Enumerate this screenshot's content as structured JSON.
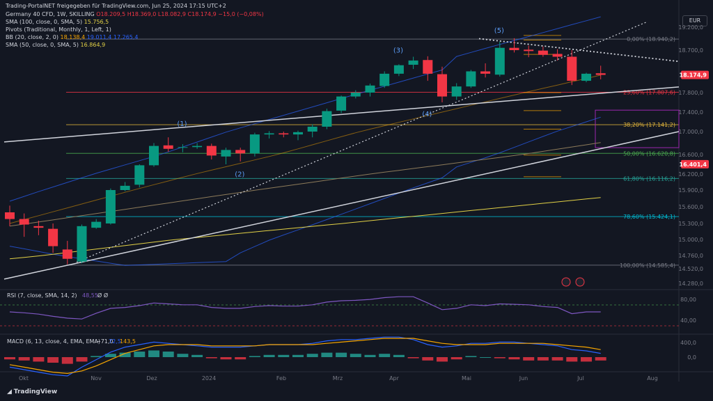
{
  "header": {
    "published": "Trading-PortalNET freigegeben für TradingView.com, Jun 25, 2024 17:15 UTC+2",
    "symbol": "Germany 40 CFD, 1W, SKILLING",
    "ohlc": "O18.209,5 H18.369,0 L18.082,9 C18.174,9 −15,0 (−0,08%)",
    "sma100": "SMA (100, close, 0, SMA, 5)",
    "sma100_val": "15.756,5",
    "pivots": "Pivots (Traditional, Monthly, 1, Left, 1)",
    "bb": "BB (20, close, 2, 0)",
    "bb_vals": [
      "18.138,4",
      "19.011,4",
      "17.265,4"
    ],
    "sma50": "SMA (50, close, 0, SMA, 5)",
    "sma50_val": "16.864,9",
    "currency": "EUR"
  },
  "brand": "TradingView",
  "colors": {
    "bg": "#131722",
    "up": "#089981",
    "down": "#f23645",
    "bb": "#2962ff",
    "sma100": "#e2d146",
    "sma50": "#8d7b5a",
    "trend": "#d1d4dc",
    "last": "#f23645",
    "price_axis": "#787b86"
  },
  "chart_data": {
    "type": "candlestick",
    "timeframe": "1W",
    "y_ticks": [
      19200,
      18700,
      17800,
      17400,
      17000,
      16600,
      16200,
      15900,
      15600,
      15300,
      15000,
      14760,
      14520,
      14280
    ],
    "y_tick_labels": [
      "19.200,0",
      "18.700,0",
      "17.800,0",
      "17.400,0",
      "17.000,0",
      "16.600,0",
      "16.200,0",
      "15.900,0",
      "15.600,0",
      "15.300,0",
      "15.000,0",
      "14.760,0",
      "14.520,0",
      "14.280,0"
    ],
    "x_labels": [
      "Okt",
      "Nov",
      "Dez",
      "2024",
      "Feb",
      "Mrz",
      "Apr",
      "Mai",
      "Jun",
      "Jul",
      "Aug"
    ],
    "candles": [
      {
        "o": 15500,
        "h": 15620,
        "l": 15250,
        "c": 15380
      },
      {
        "o": 15380,
        "h": 15480,
        "l": 15050,
        "c": 15280
      },
      {
        "o": 15250,
        "h": 15350,
        "l": 15080,
        "c": 15220
      },
      {
        "o": 15200,
        "h": 15300,
        "l": 14800,
        "c": 14900
      },
      {
        "o": 14850,
        "h": 14980,
        "l": 14600,
        "c": 14700
      },
      {
        "o": 14650,
        "h": 15280,
        "l": 14620,
        "c": 15250
      },
      {
        "o": 15220,
        "h": 15380,
        "l": 15200,
        "c": 15330
      },
      {
        "o": 15300,
        "h": 15930,
        "l": 15280,
        "c": 15900
      },
      {
        "o": 15900,
        "h": 16050,
        "l": 15880,
        "c": 15980
      },
      {
        "o": 16000,
        "h": 16400,
        "l": 15950,
        "c": 16380
      },
      {
        "o": 16380,
        "h": 16800,
        "l": 16350,
        "c": 16750
      },
      {
        "o": 16760,
        "h": 16900,
        "l": 16650,
        "c": 16700
      },
      {
        "o": 16720,
        "h": 16780,
        "l": 16640,
        "c": 16730
      },
      {
        "o": 16730,
        "h": 16800,
        "l": 16700,
        "c": 16750
      },
      {
        "o": 16750,
        "h": 16790,
        "l": 16500,
        "c": 16580
      },
      {
        "o": 16560,
        "h": 16720,
        "l": 16400,
        "c": 16680
      },
      {
        "o": 16680,
        "h": 16720,
        "l": 16460,
        "c": 16620
      },
      {
        "o": 16620,
        "h": 16980,
        "l": 16560,
        "c": 16950
      },
      {
        "o": 16950,
        "h": 17010,
        "l": 16880,
        "c": 16970
      },
      {
        "o": 16970,
        "h": 17000,
        "l": 16900,
        "c": 16950
      },
      {
        "o": 16950,
        "h": 17020,
        "l": 16850,
        "c": 16990
      },
      {
        "o": 17000,
        "h": 17150,
        "l": 16900,
        "c": 17100
      },
      {
        "o": 17100,
        "h": 17470,
        "l": 17050,
        "c": 17420
      },
      {
        "o": 17430,
        "h": 17740,
        "l": 17380,
        "c": 17720
      },
      {
        "o": 17720,
        "h": 17850,
        "l": 17680,
        "c": 17800
      },
      {
        "o": 17800,
        "h": 17990,
        "l": 17720,
        "c": 17950
      },
      {
        "o": 17940,
        "h": 18250,
        "l": 17900,
        "c": 18200
      },
      {
        "o": 18200,
        "h": 18400,
        "l": 18150,
        "c": 18380
      },
      {
        "o": 18390,
        "h": 18560,
        "l": 18300,
        "c": 18480
      },
      {
        "o": 18490,
        "h": 18570,
        "l": 18050,
        "c": 18200
      },
      {
        "o": 18190,
        "h": 18350,
        "l": 17600,
        "c": 17720
      },
      {
        "o": 17720,
        "h": 18000,
        "l": 17650,
        "c": 17930
      },
      {
        "o": 17930,
        "h": 18280,
        "l": 17900,
        "c": 18250
      },
      {
        "o": 18250,
        "h": 18420,
        "l": 18120,
        "c": 18200
      },
      {
        "o": 18180,
        "h": 18880,
        "l": 18140,
        "c": 18750
      },
      {
        "o": 18750,
        "h": 18960,
        "l": 18650,
        "c": 18700
      },
      {
        "o": 18710,
        "h": 18800,
        "l": 18550,
        "c": 18680
      },
      {
        "o": 18690,
        "h": 18780,
        "l": 18560,
        "c": 18600
      },
      {
        "o": 18620,
        "h": 18720,
        "l": 18480,
        "c": 18560
      },
      {
        "o": 18560,
        "h": 18700,
        "l": 17960,
        "c": 18050
      },
      {
        "o": 18050,
        "h": 18220,
        "l": 18020,
        "c": 18200
      },
      {
        "o": 18210,
        "h": 18370,
        "l": 18080,
        "c": 18175
      }
    ],
    "fibonacci": [
      {
        "label": "0,00% (18.940,2)",
        "price": 18940.2,
        "color": "#787b86"
      },
      {
        "label": "23,60% (17.807,6)",
        "price": 17807.6,
        "color": "#f23645"
      },
      {
        "label": "38,20% (17.141,2)",
        "price": 17141.2,
        "color": "#e2b53b"
      },
      {
        "label": "50,00% (16.620,8)",
        "price": 16620.8,
        "color": "#4caf50"
      },
      {
        "label": "61,80% (16.116,2)",
        "price": 16116.2,
        "color": "#26a69a"
      },
      {
        "label": "78,60% (15.424,1)",
        "price": 15424.1,
        "color": "#00bcd4"
      },
      {
        "label": "100,00% (14.585,4)",
        "price": 14585.4,
        "color": "#787b86"
      }
    ],
    "elliott_labels": [
      "(1)",
      "(2)",
      "(3)",
      "(4)",
      "(5)"
    ],
    "last_price": {
      "label": "18.174,9",
      "price": 18174.9
    },
    "mark_price": {
      "label": "16.401,4",
      "price": 16401.4
    },
    "rsi": {
      "label": "RSI (7, close, SMA, 14, 2)",
      "value": "48,55",
      "extra": "Ø Ø",
      "ticks": [
        "80,00",
        "40,00"
      ]
    },
    "macd": {
      "label": "MACD (6, 13, close, 4, EMA, EMA)",
      "values": [
        "−71,0",
        "72,5",
        "143,5"
      ],
      "ticks": [
        "400,0",
        "0,0"
      ]
    }
  }
}
